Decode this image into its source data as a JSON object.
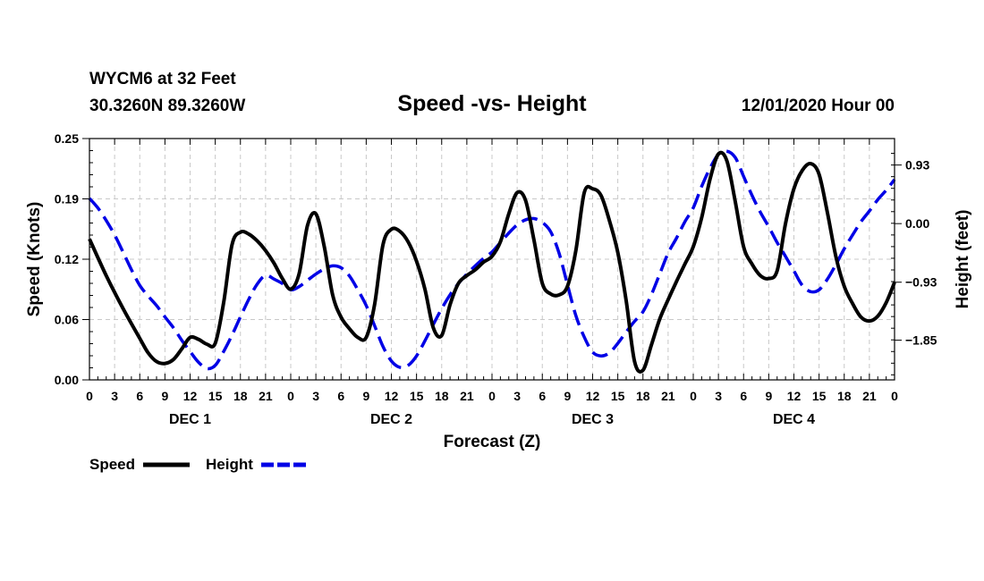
{
  "header": {
    "station": "WYCM6 at 32 Feet",
    "coords": "30.3260N 89.3260W",
    "title": "Speed -vs- Height",
    "datetime": "12/01/2020 Hour 00"
  },
  "chart_data": {
    "type": "line",
    "title": "Speed -vs- Height",
    "xlabel": "Forecast (Z)",
    "ylabel_left": "Speed (Knots)",
    "ylabel_right": "Height (feet)",
    "x_range_hours": [
      0,
      96
    ],
    "x_tick_labels": [
      "0",
      "3",
      "6",
      "9",
      "12",
      "15",
      "18",
      "21",
      "0",
      "3",
      "6",
      "9",
      "12",
      "15",
      "18",
      "21",
      "0",
      "3",
      "6",
      "9",
      "12",
      "15",
      "18",
      "21",
      "0",
      "3",
      "6",
      "9",
      "12",
      "15",
      "18",
      "21",
      "0"
    ],
    "day_labels": [
      {
        "label": "DEC 1",
        "hour": 12
      },
      {
        "label": "DEC 2",
        "hour": 36
      },
      {
        "label": "DEC 3",
        "hour": 60
      },
      {
        "label": "DEC 4",
        "hour": 84
      }
    ],
    "ylim_left": [
      0,
      0.25
    ],
    "yticks_left": [
      "0.00",
      "0.06",
      "0.12",
      "0.19",
      "0.25"
    ],
    "ylim_right": [
      -2.48,
      1.35
    ],
    "yticks_right": [
      {
        "label": "0.93",
        "value": 0.93
      },
      {
        "label": "0.00",
        "value": 0.0
      },
      {
        "label": "−0.93",
        "value": -0.93
      },
      {
        "label": "−1.85",
        "value": -1.85
      }
    ],
    "grid": true,
    "legend": "bottom-left",
    "series": [
      {
        "name": "Speed",
        "axis": "left",
        "color": "#000000",
        "style": "solid",
        "points": [
          [
            0,
            0.146
          ],
          [
            2,
            0.108
          ],
          [
            4,
            0.074
          ],
          [
            6,
            0.043
          ],
          [
            7,
            0.028
          ],
          [
            8,
            0.019
          ],
          [
            9,
            0.017
          ],
          [
            10,
            0.021
          ],
          [
            11,
            0.032
          ],
          [
            12,
            0.044
          ],
          [
            13,
            0.042
          ],
          [
            14,
            0.037
          ],
          [
            15,
            0.038
          ],
          [
            16,
            0.08
          ],
          [
            17,
            0.14
          ],
          [
            18,
            0.153
          ],
          [
            19,
            0.151
          ],
          [
            20,
            0.144
          ],
          [
            21,
            0.134
          ],
          [
            22,
            0.121
          ],
          [
            23,
            0.105
          ],
          [
            24,
            0.094
          ],
          [
            25,
            0.11
          ],
          [
            26,
            0.16
          ],
          [
            27,
            0.172
          ],
          [
            28,
            0.138
          ],
          [
            29,
            0.088
          ],
          [
            30,
            0.065
          ],
          [
            31,
            0.053
          ],
          [
            32,
            0.044
          ],
          [
            33,
            0.044
          ],
          [
            34,
            0.078
          ],
          [
            35,
            0.14
          ],
          [
            36,
            0.156
          ],
          [
            37,
            0.154
          ],
          [
            38,
            0.143
          ],
          [
            39,
            0.123
          ],
          [
            40,
            0.094
          ],
          [
            41,
            0.054
          ],
          [
            42,
            0.046
          ],
          [
            43,
            0.078
          ],
          [
            44,
            0.1
          ],
          [
            45,
            0.108
          ],
          [
            46,
            0.114
          ],
          [
            47,
            0.122
          ],
          [
            48,
            0.128
          ],
          [
            49,
            0.143
          ],
          [
            50,
            0.172
          ],
          [
            51,
            0.194
          ],
          [
            52,
            0.186
          ],
          [
            53,
            0.145
          ],
          [
            54,
            0.1
          ],
          [
            55,
            0.089
          ],
          [
            56,
            0.088
          ],
          [
            57,
            0.097
          ],
          [
            58,
            0.134
          ],
          [
            59,
            0.194
          ],
          [
            60,
            0.198
          ],
          [
            61,
            0.191
          ],
          [
            62,
            0.165
          ],
          [
            63,
            0.132
          ],
          [
            64,
            0.082
          ],
          [
            65,
            0.019
          ],
          [
            66,
            0.01
          ],
          [
            67,
            0.036
          ],
          [
            68,
            0.063
          ],
          [
            69,
            0.083
          ],
          [
            70,
            0.102
          ],
          [
            71,
            0.12
          ],
          [
            72,
            0.138
          ],
          [
            73,
            0.168
          ],
          [
            74,
            0.208
          ],
          [
            75,
            0.234
          ],
          [
            76,
            0.227
          ],
          [
            77,
            0.185
          ],
          [
            78,
            0.138
          ],
          [
            79,
            0.12
          ],
          [
            80,
            0.108
          ],
          [
            81,
            0.105
          ],
          [
            82,
            0.113
          ],
          [
            83,
            0.162
          ],
          [
            84,
            0.198
          ],
          [
            85,
            0.217
          ],
          [
            86,
            0.224
          ],
          [
            87,
            0.213
          ],
          [
            88,
            0.173
          ],
          [
            89,
            0.128
          ],
          [
            90,
            0.097
          ],
          [
            91,
            0.079
          ],
          [
            92,
            0.065
          ],
          [
            93,
            0.061
          ],
          [
            94,
            0.066
          ],
          [
            95,
            0.08
          ],
          [
            96,
            0.101
          ]
        ]
      },
      {
        "name": "Height",
        "axis": "right",
        "color": "#0000e6",
        "style": "dashed",
        "points": [
          [
            0,
            0.4
          ],
          [
            1,
            0.25
          ],
          [
            2,
            0.05
          ],
          [
            3,
            -0.18
          ],
          [
            4,
            -0.45
          ],
          [
            5,
            -0.73
          ],
          [
            6,
            -0.98
          ],
          [
            7,
            -1.15
          ],
          [
            8,
            -1.3
          ],
          [
            9,
            -1.48
          ],
          [
            10,
            -1.65
          ],
          [
            11,
            -1.85
          ],
          [
            12,
            -2.03
          ],
          [
            13,
            -2.2
          ],
          [
            14,
            -2.3
          ],
          [
            15,
            -2.25
          ],
          [
            16,
            -2.03
          ],
          [
            17,
            -1.77
          ],
          [
            18,
            -1.48
          ],
          [
            19,
            -1.2
          ],
          [
            20,
            -0.96
          ],
          [
            21,
            -0.82
          ],
          [
            22,
            -0.88
          ],
          [
            23,
            -0.95
          ],
          [
            24,
            -1.05
          ],
          [
            25,
            -1.0
          ],
          [
            26,
            -0.9
          ],
          [
            27,
            -0.8
          ],
          [
            28,
            -0.72
          ],
          [
            29,
            -0.67
          ],
          [
            30,
            -0.7
          ],
          [
            31,
            -0.83
          ],
          [
            32,
            -1.05
          ],
          [
            33,
            -1.3
          ],
          [
            34,
            -1.62
          ],
          [
            35,
            -1.95
          ],
          [
            36,
            -2.18
          ],
          [
            37,
            -2.28
          ],
          [
            38,
            -2.25
          ],
          [
            39,
            -2.1
          ],
          [
            40,
            -1.86
          ],
          [
            41,
            -1.6
          ],
          [
            42,
            -1.35
          ],
          [
            43,
            -1.13
          ],
          [
            44,
            -0.95
          ],
          [
            45,
            -0.8
          ],
          [
            46,
            -0.67
          ],
          [
            47,
            -0.55
          ],
          [
            48,
            -0.45
          ],
          [
            49,
            -0.3
          ],
          [
            50,
            -0.15
          ],
          [
            51,
            -0.02
          ],
          [
            52,
            0.06
          ],
          [
            53,
            0.08
          ],
          [
            54,
            0.02
          ],
          [
            55,
            -0.13
          ],
          [
            56,
            -0.47
          ],
          [
            57,
            -0.97
          ],
          [
            58,
            -1.46
          ],
          [
            59,
            -1.8
          ],
          [
            60,
            -2.04
          ],
          [
            61,
            -2.1
          ],
          [
            62,
            -2.05
          ],
          [
            63,
            -1.9
          ],
          [
            64,
            -1.72
          ],
          [
            65,
            -1.55
          ],
          [
            66,
            -1.4
          ],
          [
            67,
            -1.13
          ],
          [
            68,
            -0.8
          ],
          [
            69,
            -0.47
          ],
          [
            70,
            -0.23
          ],
          [
            71,
            0.03
          ],
          [
            72,
            0.25
          ],
          [
            73,
            0.59
          ],
          [
            74,
            0.88
          ],
          [
            75,
            1.1
          ],
          [
            76,
            1.15
          ],
          [
            77,
            1.05
          ],
          [
            78,
            0.75
          ],
          [
            79,
            0.45
          ],
          [
            80,
            0.18
          ],
          [
            81,
            -0.05
          ],
          [
            82,
            -0.3
          ],
          [
            83,
            -0.52
          ],
          [
            84,
            -0.75
          ],
          [
            85,
            -0.98
          ],
          [
            86,
            -1.08
          ],
          [
            87,
            -1.05
          ],
          [
            88,
            -0.88
          ],
          [
            89,
            -0.65
          ],
          [
            90,
            -0.4
          ],
          [
            91,
            -0.18
          ],
          [
            92,
            0.03
          ],
          [
            93,
            0.2
          ],
          [
            94,
            0.38
          ],
          [
            95,
            0.53
          ],
          [
            96,
            0.7
          ]
        ]
      }
    ]
  },
  "legend": {
    "speed_label": "Speed",
    "height_label": "Height"
  }
}
